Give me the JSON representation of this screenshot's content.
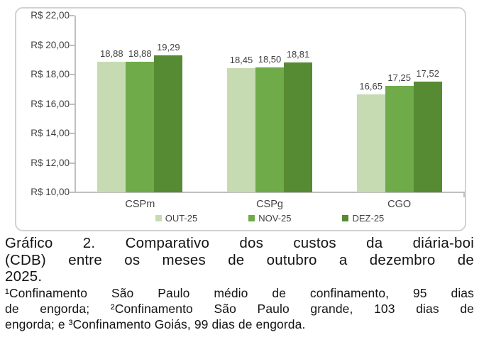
{
  "chart_data": {
    "type": "bar",
    "title": "",
    "xlabel": "",
    "ylabel": "",
    "categories": [
      "CSPm",
      "CSPg",
      "CGO"
    ],
    "series": [
      {
        "name": "OUT-25",
        "color": "#c6dbb2",
        "values": [
          18.88,
          18.45,
          16.65
        ],
        "value_labels": [
          "18,88",
          "18,45",
          "16,65"
        ]
      },
      {
        "name": "NOV-25",
        "color": "#6fab49",
        "values": [
          18.88,
          18.5,
          17.25
        ],
        "value_labels": [
          "18,88",
          "18,50",
          "17,25"
        ]
      },
      {
        "name": "DEZ-25",
        "color": "#568a33",
        "values": [
          19.29,
          18.81,
          17.52
        ],
        "value_labels": [
          "19,29",
          "18,81",
          "17,52"
        ]
      }
    ],
    "ylim": [
      10,
      22
    ],
    "ytick_step": 2,
    "yticks": [
      {
        "value": 22,
        "label": "R$ 22,00"
      },
      {
        "value": 20,
        "label": "R$ 20,00"
      },
      {
        "value": 18,
        "label": "R$ 18,00"
      },
      {
        "value": 16,
        "label": "R$ 16,00"
      },
      {
        "value": 14,
        "label": "R$ 14,00"
      },
      {
        "value": 12,
        "label": "R$ 12,00"
      },
      {
        "value": 10,
        "label": "R$ 10,00"
      }
    ],
    "legend_position": "bottom",
    "grid": false
  },
  "caption": {
    "text": "Gráfico 2. Comparativo dos custos da diária-boi (CDB) entre os meses de outubro a dezembro de 2025.",
    "lines": [
      "Gráfico 2. Comparativo dos custos da diária-boi",
      "(CDB) entre os meses de outubro a dezembro de",
      "2025."
    ]
  },
  "footnote": {
    "text": "¹Confinamento São Paulo médio de confinamento, 95 dias de engorda; ²Confinamento São Paulo grande, 103 dias de engorda; e ³Confinamento Goiás, 99 dias de engorda.",
    "lines": [
      "¹Confinamento São Paulo médio de confinamento, 95 dias",
      "de engorda; ²Confinamento São Paulo grande, 103 dias de",
      "engorda; e ³Confinamento Goiás, 99 dias de engorda."
    ]
  },
  "colors": {
    "axis": "#bfbfbf",
    "frame_border": "#d2d2d2",
    "label_text": "#404040",
    "body_text": "#141414"
  }
}
